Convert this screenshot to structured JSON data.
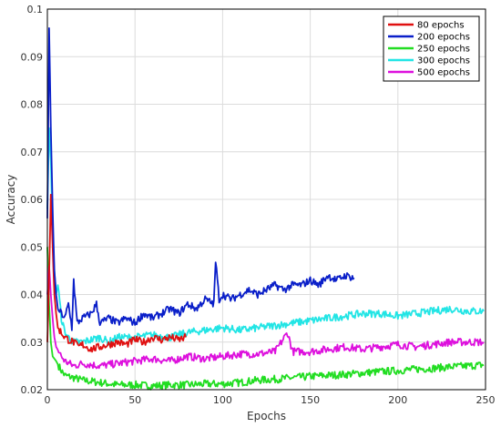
{
  "chart_data": {
    "type": "line",
    "title": "",
    "xlabel": "Epochs",
    "ylabel": "Accuracy",
    "xlim": [
      0,
      250
    ],
    "ylim": [
      0.02,
      0.1
    ],
    "xticks": [
      "0",
      "50",
      "100",
      "150",
      "200",
      "250"
    ],
    "yticks": [
      "0.02",
      "0.03",
      "0.04",
      "0.05",
      "0.06",
      "0.07",
      "0.08",
      "0.09",
      "0.1"
    ],
    "grid": true,
    "legend_position": "top-right",
    "series": [
      {
        "name": "80 epochs",
        "color": "#e01010",
        "points": [
          [
            0,
            0.03
          ],
          [
            1,
            0.044
          ],
          [
            2,
            0.061
          ],
          [
            3,
            0.05
          ],
          [
            4,
            0.04
          ],
          [
            5,
            0.036
          ],
          [
            6,
            0.033
          ],
          [
            8,
            0.032
          ],
          [
            10,
            0.031
          ],
          [
            12,
            0.0305
          ],
          [
            15,
            0.03
          ],
          [
            18,
            0.029
          ],
          [
            20,
            0.0295
          ],
          [
            25,
            0.0285
          ],
          [
            30,
            0.029
          ],
          [
            35,
            0.0295
          ],
          [
            40,
            0.03
          ],
          [
            45,
            0.0295
          ],
          [
            50,
            0.0305
          ],
          [
            55,
            0.03
          ],
          [
            60,
            0.031
          ],
          [
            65,
            0.0305
          ],
          [
            70,
            0.031
          ],
          [
            75,
            0.0305
          ],
          [
            79,
            0.031
          ]
        ]
      },
      {
        "name": "200 epochs",
        "color": "#0a1fc9",
        "points": [
          [
            0,
            0.056
          ],
          [
            1,
            0.096
          ],
          [
            2,
            0.075
          ],
          [
            3,
            0.058
          ],
          [
            4,
            0.045
          ],
          [
            5,
            0.04
          ],
          [
            6,
            0.037
          ],
          [
            8,
            0.036
          ],
          [
            10,
            0.035
          ],
          [
            12,
            0.038
          ],
          [
            14,
            0.033
          ],
          [
            15,
            0.043
          ],
          [
            17,
            0.034
          ],
          [
            20,
            0.035
          ],
          [
            25,
            0.036
          ],
          [
            28,
            0.038
          ],
          [
            30,
            0.034
          ],
          [
            35,
            0.035
          ],
          [
            40,
            0.034
          ],
          [
            45,
            0.035
          ],
          [
            50,
            0.034
          ],
          [
            55,
            0.036
          ],
          [
            60,
            0.035
          ],
          [
            65,
            0.036
          ],
          [
            70,
            0.037
          ],
          [
            75,
            0.036
          ],
          [
            80,
            0.038
          ],
          [
            85,
            0.037
          ],
          [
            90,
            0.039
          ],
          [
            95,
            0.038
          ],
          [
            96,
            0.047
          ],
          [
            98,
            0.039
          ],
          [
            100,
            0.04
          ],
          [
            105,
            0.039
          ],
          [
            110,
            0.04
          ],
          [
            115,
            0.041
          ],
          [
            120,
            0.04
          ],
          [
            125,
            0.041
          ],
          [
            130,
            0.042
          ],
          [
            135,
            0.041
          ],
          [
            140,
            0.042
          ],
          [
            145,
            0.042
          ],
          [
            150,
            0.043
          ],
          [
            155,
            0.042
          ],
          [
            160,
            0.044
          ],
          [
            165,
            0.043
          ],
          [
            170,
            0.044
          ],
          [
            175,
            0.0435
          ]
        ]
      },
      {
        "name": "250 epochs",
        "color": "#22dd22",
        "points": [
          [
            0,
            0.05
          ],
          [
            1,
            0.038
          ],
          [
            2,
            0.03
          ],
          [
            3,
            0.027
          ],
          [
            5,
            0.026
          ],
          [
            8,
            0.024
          ],
          [
            10,
            0.023
          ],
          [
            15,
            0.0225
          ],
          [
            20,
            0.022
          ],
          [
            30,
            0.0215
          ],
          [
            40,
            0.021
          ],
          [
            50,
            0.021
          ],
          [
            60,
            0.0208
          ],
          [
            70,
            0.021
          ],
          [
            80,
            0.021
          ],
          [
            90,
            0.0212
          ],
          [
            100,
            0.0212
          ],
          [
            110,
            0.0215
          ],
          [
            120,
            0.022
          ],
          [
            130,
            0.0222
          ],
          [
            140,
            0.0225
          ],
          [
            150,
            0.0228
          ],
          [
            160,
            0.023
          ],
          [
            170,
            0.0232
          ],
          [
            180,
            0.0235
          ],
          [
            190,
            0.0238
          ],
          [
            200,
            0.024
          ],
          [
            210,
            0.0243
          ],
          [
            220,
            0.0245
          ],
          [
            230,
            0.0248
          ],
          [
            240,
            0.025
          ],
          [
            249,
            0.0252
          ]
        ]
      },
      {
        "name": "300 epochs",
        "color": "#22e5e5",
        "points": [
          [
            0,
            0.058
          ],
          [
            1,
            0.075
          ],
          [
            2,
            0.068
          ],
          [
            3,
            0.052
          ],
          [
            4,
            0.045
          ],
          [
            5,
            0.04
          ],
          [
            6,
            0.042
          ],
          [
            8,
            0.035
          ],
          [
            10,
            0.032
          ],
          [
            12,
            0.031
          ],
          [
            15,
            0.03
          ],
          [
            20,
            0.03
          ],
          [
            25,
            0.0305
          ],
          [
            30,
            0.031
          ],
          [
            35,
            0.03
          ],
          [
            40,
            0.031
          ],
          [
            50,
            0.031
          ],
          [
            60,
            0.0315
          ],
          [
            70,
            0.031
          ],
          [
            80,
            0.032
          ],
          [
            90,
            0.0325
          ],
          [
            100,
            0.033
          ],
          [
            110,
            0.0325
          ],
          [
            120,
            0.033
          ],
          [
            130,
            0.0335
          ],
          [
            140,
            0.034
          ],
          [
            150,
            0.0345
          ],
          [
            160,
            0.035
          ],
          [
            170,
            0.0355
          ],
          [
            180,
            0.036
          ],
          [
            190,
            0.036
          ],
          [
            200,
            0.0355
          ],
          [
            210,
            0.036
          ],
          [
            220,
            0.0365
          ],
          [
            230,
            0.037
          ],
          [
            240,
            0.0365
          ],
          [
            249,
            0.0365
          ]
        ]
      },
      {
        "name": "500 epochs",
        "color": "#dd10dd",
        "points": [
          [
            0,
            0.04
          ],
          [
            1,
            0.046
          ],
          [
            2,
            0.04
          ],
          [
            3,
            0.035
          ],
          [
            4,
            0.031
          ],
          [
            5,
            0.029
          ],
          [
            8,
            0.027
          ],
          [
            10,
            0.026
          ],
          [
            15,
            0.025
          ],
          [
            20,
            0.0255
          ],
          [
            30,
            0.025
          ],
          [
            40,
            0.0255
          ],
          [
            50,
            0.026
          ],
          [
            60,
            0.0265
          ],
          [
            70,
            0.026
          ],
          [
            80,
            0.027
          ],
          [
            90,
            0.0265
          ],
          [
            100,
            0.027
          ],
          [
            110,
            0.0275
          ],
          [
            120,
            0.0275
          ],
          [
            130,
            0.028
          ],
          [
            137,
            0.032
          ],
          [
            140,
            0.028
          ],
          [
            150,
            0.028
          ],
          [
            160,
            0.0285
          ],
          [
            170,
            0.029
          ],
          [
            180,
            0.0285
          ],
          [
            190,
            0.029
          ],
          [
            200,
            0.0295
          ],
          [
            210,
            0.029
          ],
          [
            220,
            0.0295
          ],
          [
            230,
            0.03
          ],
          [
            240,
            0.03
          ],
          [
            249,
            0.03
          ]
        ]
      }
    ]
  }
}
